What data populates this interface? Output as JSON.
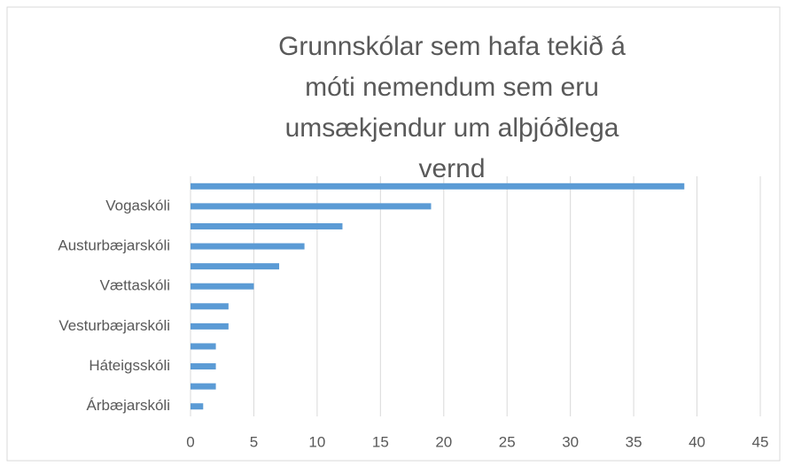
{
  "chart_data": {
    "type": "bar",
    "orientation": "horizontal",
    "title": "Grunnskólar sem hafa tekið á móti nemendum sem eru umsækjendur um alþjóðlega vernd",
    "categories": [
      null,
      "Vogaskóli",
      null,
      "Austurbæjarskóli",
      null,
      "Vættaskóli",
      null,
      "Vesturbæjarskóli",
      null,
      "Háteigsskóli",
      null,
      "Árbæjarskóli"
    ],
    "values": [
      39,
      19,
      12,
      9,
      7,
      5,
      3,
      3,
      2,
      2,
      2,
      1
    ],
    "color": "#5b9bd5",
    "xlim": [
      0,
      45
    ],
    "xticks": [
      0,
      5,
      10,
      15,
      20,
      25,
      30,
      35,
      40,
      45
    ],
    "grid": true
  }
}
